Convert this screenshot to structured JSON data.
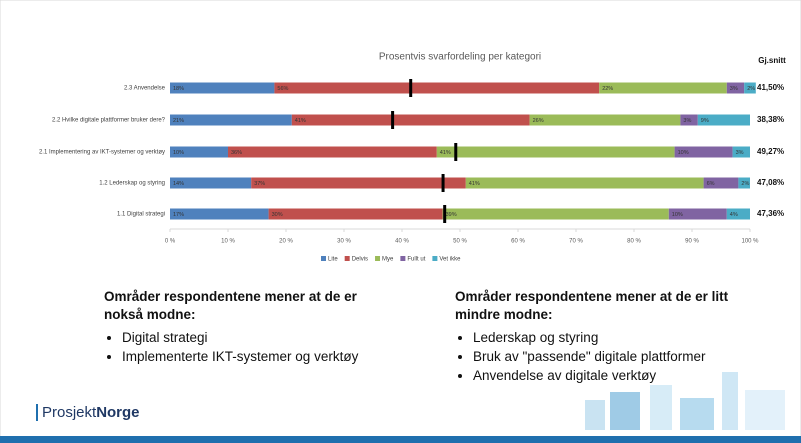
{
  "chart_data": {
    "type": "bar",
    "orientation": "horizontal",
    "stacked": true,
    "title": "Prosentvis svarfordeling per kategori",
    "categories": [
      "2.3 Anvendelse",
      "2.2 Hvilke digitale plattformer bruker dere?",
      "2.1 Implementering av IKT-systemer og verktøy",
      "1.2 Lederskap og styring",
      "1.1 Digital strategi"
    ],
    "series": [
      {
        "name": "Lite",
        "color": "#4f81bd",
        "values": [
          18,
          21,
          10,
          14,
          17
        ],
        "value_labels": [
          "18%",
          "21%",
          "10%",
          "14%",
          "17%"
        ]
      },
      {
        "name": "Delvis",
        "color": "#c0504d",
        "values": [
          56,
          41,
          36,
          37,
          30
        ],
        "value_labels": [
          "56%",
          "41%",
          "36%",
          "37%",
          "30%"
        ]
      },
      {
        "name": "Mye",
        "color": "#9bbb59",
        "values": [
          22,
          26,
          41,
          41,
          39
        ],
        "value_labels": [
          "22%",
          "26%",
          "41%",
          "41%",
          "39%"
        ]
      },
      {
        "name": "Fullt ut",
        "color": "#8064a2",
        "values": [
          3,
          3,
          10,
          6,
          10
        ],
        "value_labels": [
          "3%",
          "3%",
          "10%",
          "6%",
          "10%"
        ]
      },
      {
        "name": "Vet ikke",
        "color": "#4bacc6",
        "values": [
          2,
          9,
          3,
          2,
          4
        ],
        "value_labels": [
          "2%",
          "9%",
          "3%",
          "2%",
          "4%"
        ]
      }
    ],
    "xlim": [
      0,
      100
    ],
    "xticks": [
      {
        "value": 0,
        "label": "0 %"
      },
      {
        "value": 10,
        "label": "10 %"
      },
      {
        "value": 20,
        "label": "20 %"
      },
      {
        "value": 30,
        "label": "30 %"
      },
      {
        "value": 40,
        "label": "40 %"
      },
      {
        "value": 50,
        "label": "50 %"
      },
      {
        "value": 60,
        "label": "60 %"
      },
      {
        "value": 70,
        "label": "70 %"
      },
      {
        "value": 80,
        "label": "80 %"
      },
      {
        "value": 90,
        "label": "90 %"
      },
      {
        "value": 100,
        "label": "100 %"
      }
    ],
    "averages": {
      "name": "Gj.snitt",
      "color": "#000000",
      "values": [
        41.5,
        38.38,
        49.27,
        47.08,
        47.36
      ],
      "value_labels": [
        "41,50%",
        "38,38%",
        "49,27%",
        "47,08%",
        "47,36%"
      ]
    },
    "legend": "bottom"
  },
  "text": {
    "left_heading": "Områder respondentene mener at de er nokså modne:",
    "left_items": [
      "Digital strategi",
      "Implementerte IKT-systemer og verktøy"
    ],
    "right_heading": "Områder respondentene mener at de er litt mindre modne:",
    "right_items": [
      "Lederskap og styring",
      "Bruk av \"passende\" digitale plattformer",
      "Anvendelse av digitale verktøy"
    ]
  },
  "logo": {
    "prefix": "Prosjekt",
    "suffix": "Norge"
  }
}
